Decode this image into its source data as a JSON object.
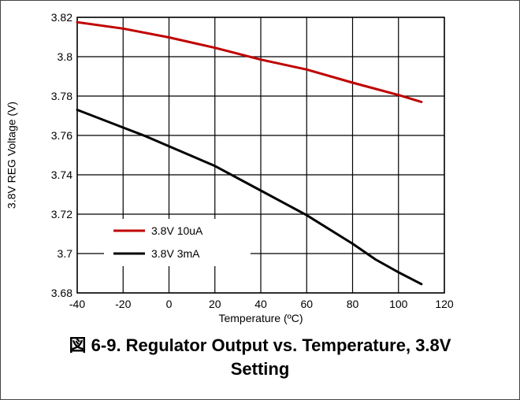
{
  "figure": {
    "caption_line1": "図 6-9. Regulator Output vs. Temperature, 3.8V",
    "caption_line2": "Setting"
  },
  "chart_data": {
    "type": "line",
    "xlabel": "Temperature (ºC)",
    "ylabel": "3.8V REG Voltage (V)",
    "xlim": [
      -40,
      120
    ],
    "ylim": [
      3.68,
      3.82
    ],
    "xticks": [
      -40,
      -20,
      0,
      20,
      40,
      60,
      80,
      100,
      120
    ],
    "xtick_labels": [
      "-40",
      "-20",
      "0",
      "20",
      "40",
      "60",
      "80",
      "100",
      "120"
    ],
    "yticks": [
      3.68,
      3.7,
      3.72,
      3.74,
      3.76,
      3.78,
      3.8,
      3.82
    ],
    "ytick_labels": [
      "3.68",
      "3.7",
      "3.72",
      "3.74",
      "3.76",
      "3.78",
      "3.8",
      "3.82"
    ],
    "grid": true,
    "legend_position": "bottom-left",
    "series": [
      {
        "name": "3.8V 10uA",
        "color": "#c00000",
        "x": [
          -40,
          -20,
          0,
          20,
          40,
          60,
          80,
          100,
          110
        ],
        "y": [
          3.8175,
          3.8143,
          3.8098,
          3.8045,
          3.7985,
          3.7935,
          3.7868,
          3.7805,
          3.777
        ]
      },
      {
        "name": "3.8V 3mA",
        "color": "#000000",
        "x": [
          -40,
          -20,
          -10,
          0,
          20,
          40,
          60,
          80,
          90,
          100,
          110
        ],
        "y": [
          3.773,
          3.764,
          3.7595,
          3.7545,
          3.7445,
          3.732,
          3.7195,
          3.705,
          3.697,
          3.6905,
          3.6845
        ]
      }
    ]
  }
}
